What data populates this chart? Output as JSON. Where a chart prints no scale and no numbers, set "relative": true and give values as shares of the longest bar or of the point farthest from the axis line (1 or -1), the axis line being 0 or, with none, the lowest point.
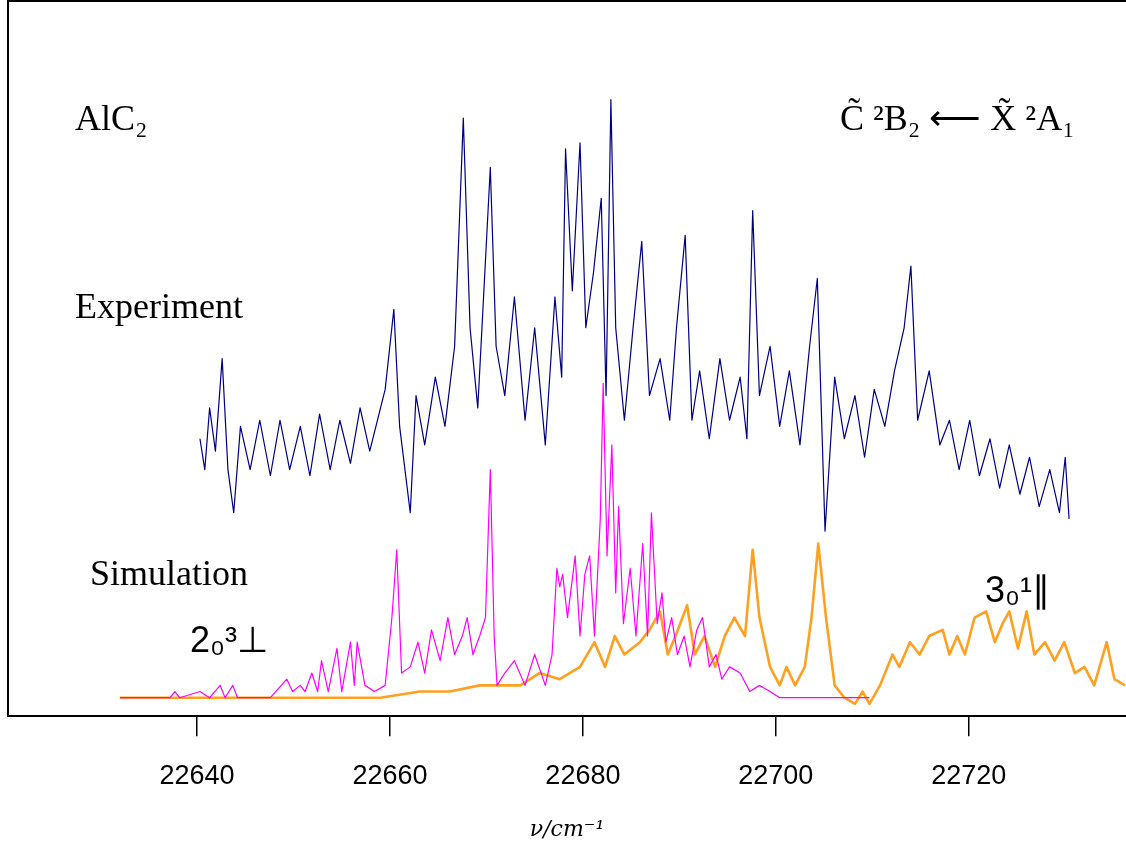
{
  "chart_data": {
    "type": "line",
    "title": "AlC₂",
    "subtitle": "C̃ ²B₂ ⟵ X̃ ²A₁",
    "xlabel": "ν/cm⁻¹",
    "relative": true,
    "xlim": [
      22620.4,
      22736.3
    ],
    "xticks": [
      22640,
      22660,
      22680,
      22700,
      22720
    ],
    "grid": false,
    "legend": false,
    "marker": "none",
    "line_style": "solid",
    "tick_labels": "x",
    "annotations": [
      "Simulation"
    ],
    "series": [
      {
        "name": "Experiment",
        "color": "#000080",
        "x": [
          22640.3,
          22640.8,
          22641.3,
          22641.9,
          22642.6,
          22643.2,
          22643.8,
          22644.5,
          22645.5,
          22646.5,
          22647.6,
          22648.6,
          22649.6,
          22650.7,
          22651.7,
          22652.7,
          22653.8,
          22654.8,
          22655.9,
          22656.9,
          22657.9,
          22659.5,
          22660.4,
          22661.0,
          22662.1,
          22662.7,
          22663.6,
          22664.7,
          22665.7,
          22666.7,
          22667.6,
          22668.3,
          22669.1,
          22669.8,
          22670.4,
          22671.0,
          22671.9,
          22672.9,
          22674.0,
          22675.0,
          22676.1,
          22677.1,
          22677.8,
          22678.2,
          22678.9,
          22679.7,
          22680.3,
          22681.1,
          22681.9,
          22682.4,
          22682.9,
          22683.4,
          22684.3,
          22685.2,
          22686.1,
          22686.9,
          22688.0,
          22689.0,
          22689.7,
          22690.6,
          22691.3,
          22692.1,
          22693.1,
          22694.2,
          22695.2,
          22696.3,
          22697.0,
          22697.6,
          22698.3,
          22699.4,
          22700.4,
          22701.4,
          22702.5,
          22703.5,
          22704.3,
          22705.1,
          22706.1,
          22707.1,
          22708.2,
          22709.2,
          22710.2,
          22711.3,
          22712.3,
          22713.3,
          22714.0,
          22714.7,
          22715.9,
          22717.0,
          22718.0,
          22719.0,
          22720.1,
          22721.1,
          22722.2,
          22723.2,
          22724.2,
          22725.3,
          22726.3,
          22727.3,
          22728.4,
          22729.4,
          22730.0,
          22730.4
        ],
        "values": [
          0.45,
          0.4,
          0.5,
          0.43,
          0.58,
          0.4,
          0.33,
          0.47,
          0.4,
          0.48,
          0.39,
          0.48,
          0.4,
          0.47,
          0.39,
          0.49,
          0.4,
          0.48,
          0.41,
          0.5,
          0.43,
          0.53,
          0.66,
          0.47,
          0.33,
          0.52,
          0.44,
          0.55,
          0.47,
          0.6,
          0.97,
          0.63,
          0.5,
          0.71,
          0.89,
          0.6,
          0.52,
          0.68,
          0.48,
          0.63,
          0.44,
          0.68,
          0.55,
          0.92,
          0.69,
          0.93,
          0.63,
          0.72,
          0.84,
          0.52,
          1,
          0.63,
          0.48,
          0.63,
          0.77,
          0.52,
          0.58,
          0.48,
          0.63,
          0.78,
          0.48,
          0.56,
          0.45,
          0.58,
          0.48,
          0.55,
          0.45,
          0.82,
          0.52,
          0.6,
          0.47,
          0.56,
          0.44,
          0.6,
          0.71,
          0.3,
          0.55,
          0.45,
          0.52,
          0.42,
          0.53,
          0.47,
          0.56,
          0.63,
          0.73,
          0.48,
          0.56,
          0.44,
          0.48,
          0.4,
          0.48,
          0.39,
          0.45,
          0.37,
          0.44,
          0.36,
          0.42,
          0.34,
          0.4,
          0.33,
          0.42,
          0.32
        ]
      },
      {
        "name": "2₀³⊥",
        "color": "#ff00ff",
        "x": [
          22632.0,
          22637.2,
          22637.7,
          22638.2,
          22640.3,
          22641.3,
          22642.4,
          22642.9,
          22643.7,
          22644.2,
          22647.6,
          22649.3,
          22649.9,
          22650.7,
          22651.2,
          22651.9,
          22652.5,
          22652.9,
          22653.6,
          22654.5,
          22655.0,
          22655.9,
          22656.3,
          22656.6,
          22657.4,
          22658.4,
          22659.5,
          22660.2,
          22660.7,
          22661.2,
          22662.1,
          22662.9,
          22663.6,
          22664.3,
          22665.2,
          22666.0,
          22666.7,
          22667.5,
          22668.0,
          22668.6,
          22669.3,
          22669.9,
          22670.4,
          22670.8,
          22671.1,
          22671.9,
          22672.9,
          22674.0,
          22675.0,
          22676.1,
          22676.8,
          22677.3,
          22677.6,
          22677.9,
          22678.4,
          22679.2,
          22679.7,
          22680.2,
          22680.7,
          22681.2,
          22681.8,
          22682.1,
          22682.5,
          22683.0,
          22683.4,
          22683.7,
          22684.2,
          22684.9,
          22685.5,
          22686.2,
          22686.7,
          22687.1,
          22687.7,
          22688.2,
          22688.6,
          22689.2,
          22689.8,
          22690.5,
          22691.1,
          22691.8,
          22692.4,
          22693.1,
          22693.8,
          22694.4,
          22695.2,
          22696.3,
          22697.3,
          22698.3,
          22699.4,
          22700.4,
          22702.5,
          22705.6,
          22709.7
        ],
        "values": [
          0.03,
          0.03,
          0.04,
          0.03,
          0.04,
          0.03,
          0.05,
          0.03,
          0.05,
          0.03,
          0.03,
          0.06,
          0.04,
          0.05,
          0.04,
          0.07,
          0.04,
          0.09,
          0.04,
          0.11,
          0.04,
          0.12,
          0.05,
          0.12,
          0.05,
          0.04,
          0.05,
          0.16,
          0.27,
          0.07,
          0.08,
          0.12,
          0.07,
          0.14,
          0.09,
          0.16,
          0.1,
          0.13,
          0.16,
          0.1,
          0.13,
          0.16,
          0.4,
          0.13,
          0.05,
          0.07,
          0.09,
          0.05,
          0.1,
          0.05,
          0.1,
          0.24,
          0.21,
          0.23,
          0.16,
          0.26,
          0.13,
          0.23,
          0.26,
          0.13,
          0.32,
          0.54,
          0.26,
          0.44,
          0.2,
          0.34,
          0.15,
          0.24,
          0.13,
          0.28,
          0.13,
          0.33,
          0.15,
          0.2,
          0.12,
          0.16,
          0.1,
          0.13,
          0.08,
          0.14,
          0.16,
          0.08,
          0.1,
          0.06,
          0.08,
          0.07,
          0.04,
          0.05,
          0.04,
          0.03,
          0.03,
          0.03,
          0.03
        ]
      },
      {
        "name": "3₀¹∥",
        "color": "#ffa020",
        "x": [
          22632.0,
          22650.7,
          22659.0,
          22663.1,
          22666.2,
          22669.3,
          22671.4,
          22673.5,
          22675.5,
          22677.6,
          22679.7,
          22681.2,
          22682.3,
          22683.3,
          22684.3,
          22685.9,
          22686.9,
          22688.0,
          22688.8,
          22689.6,
          22690.8,
          22691.6,
          22692.6,
          22693.7,
          22694.7,
          22695.7,
          22696.8,
          22697.6,
          22698.3,
          22699.4,
          22700.4,
          22701.1,
          22702.0,
          22703.0,
          22703.7,
          22704.4,
          22705.2,
          22706.1,
          22707.1,
          22708.2,
          22709.0,
          22709.7,
          22710.8,
          22712.1,
          22712.8,
          22713.9,
          22714.9,
          22715.9,
          22717.3,
          22718.0,
          22718.8,
          22719.6,
          22720.6,
          22721.8,
          22722.7,
          22723.5,
          22724.2,
          22725.1,
          22726.0,
          22726.8,
          22727.9,
          22728.9,
          22729.9,
          22731.0,
          22732.0,
          22733.0,
          22734.3,
          22735.1,
          22736.2
        ],
        "values": [
          0.03,
          0.03,
          0.03,
          0.04,
          0.04,
          0.05,
          0.05,
          0.05,
          0.07,
          0.06,
          0.08,
          0.12,
          0.08,
          0.13,
          0.1,
          0.12,
          0.14,
          0.17,
          0.1,
          0.13,
          0.18,
          0.1,
          0.13,
          0.08,
          0.13,
          0.16,
          0.13,
          0.27,
          0.16,
          0.08,
          0.05,
          0.08,
          0.05,
          0.08,
          0.16,
          0.28,
          0.16,
          0.05,
          0.03,
          0.02,
          0.04,
          0.02,
          0.05,
          0.1,
          0.08,
          0.12,
          0.1,
          0.13,
          0.14,
          0.1,
          0.13,
          0.1,
          0.16,
          0.17,
          0.12,
          0.15,
          0.17,
          0.11,
          0.17,
          0.1,
          0.12,
          0.09,
          0.12,
          0.07,
          0.08,
          0.05,
          0.12,
          0.06,
          0.05
        ]
      }
    ]
  }
}
